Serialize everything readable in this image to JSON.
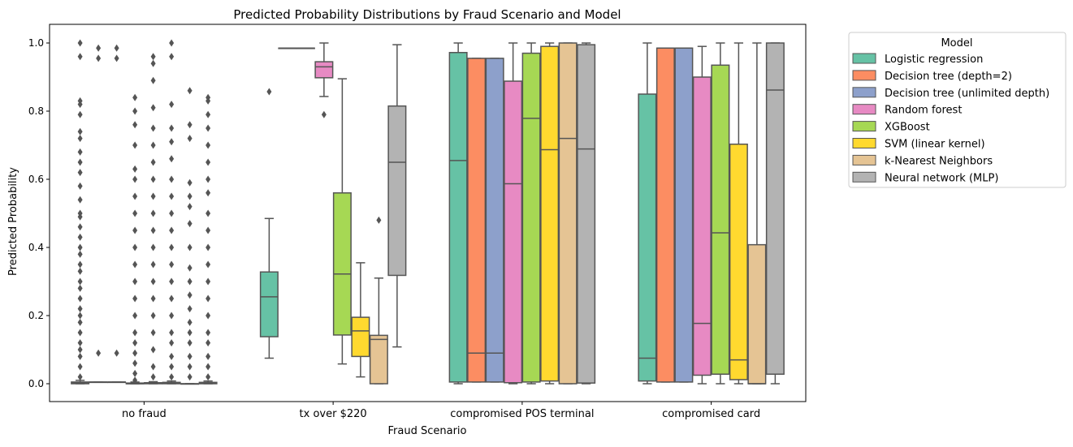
{
  "chart_data": {
    "type": "box",
    "title": "Predicted Probability Distributions by Fraud Scenario and Model",
    "xlabel": "Fraud Scenario",
    "ylabel": "Predicted Probability",
    "ylim": [
      -0.05,
      1.05
    ],
    "yticks": [
      0.0,
      0.2,
      0.4,
      0.6,
      0.8,
      1.0
    ],
    "ytick_labels": [
      "0.0",
      "0.2",
      "0.4",
      "0.6",
      "0.8",
      "1.0"
    ],
    "categories": [
      "no fraud",
      "tx over $220",
      "compromised POS terminal",
      "compromised card"
    ],
    "legend": {
      "title": "Model",
      "placement": "outside-right"
    },
    "grid": false,
    "series": [
      {
        "name": "Logistic regression",
        "color": "#66c2a5",
        "boxes": [
          {
            "q1": 0.0,
            "median": 0.002,
            "q3": 0.005,
            "whislo": 0.0,
            "whishi": 0.01,
            "fliers": [
              0.02,
              0.05,
              0.08,
              0.1,
              0.12,
              0.15,
              0.18,
              0.2,
              0.22,
              0.25,
              0.28,
              0.3,
              0.33,
              0.35,
              0.38,
              0.4,
              0.43,
              0.46,
              0.49,
              0.5,
              0.54,
              0.58,
              0.62,
              0.65,
              0.68,
              0.72,
              0.74,
              0.79,
              0.82,
              0.83,
              0.96,
              1.0
            ]
          },
          {
            "q1": 0.138,
            "median": 0.255,
            "q3": 0.328,
            "whislo": 0.075,
            "whishi": 0.485,
            "fliers": [
              0.857
            ]
          },
          {
            "q1": 0.005,
            "median": 0.655,
            "q3": 0.972,
            "whislo": 0.0,
            "whishi": 1.0,
            "fliers": []
          },
          {
            "q1": 0.008,
            "median": 0.075,
            "q3": 0.85,
            "whislo": 0.0,
            "whishi": 1.0,
            "fliers": []
          }
        ]
      },
      {
        "name": "Decision tree (depth=2)",
        "color": "#fc8d62",
        "boxes": [
          {
            "q1": 0.005,
            "median": 0.005,
            "q3": 0.005,
            "whislo": 0.005,
            "whishi": 0.005,
            "fliers": [
              0.09,
              0.955,
              0.985
            ]
          },
          {
            "q1": 0.985,
            "median": 0.985,
            "q3": 0.985,
            "whislo": 0.985,
            "whishi": 0.985,
            "fliers": []
          },
          {
            "q1": 0.005,
            "median": 0.09,
            "q3": 0.955,
            "whislo": 0.005,
            "whishi": 0.955,
            "fliers": []
          },
          {
            "q1": 0.005,
            "median": 0.985,
            "q3": 0.985,
            "whislo": 0.005,
            "whishi": 0.985,
            "fliers": []
          }
        ]
      },
      {
        "name": "Decision tree (unlimited depth)",
        "color": "#8da0cb",
        "boxes": [
          {
            "q1": 0.005,
            "median": 0.005,
            "q3": 0.005,
            "whislo": 0.005,
            "whishi": 0.005,
            "fliers": [
              0.09,
              0.955,
              0.985
            ]
          },
          {
            "q1": 0.985,
            "median": 0.985,
            "q3": 0.985,
            "whislo": 0.985,
            "whishi": 0.985,
            "fliers": []
          },
          {
            "q1": 0.005,
            "median": 0.09,
            "q3": 0.955,
            "whislo": 0.005,
            "whishi": 0.955,
            "fliers": []
          },
          {
            "q1": 0.005,
            "median": 0.985,
            "q3": 0.985,
            "whislo": 0.005,
            "whishi": 0.985,
            "fliers": []
          }
        ]
      },
      {
        "name": "Random forest",
        "color": "#e78ac3",
        "boxes": [
          {
            "q1": 0.0,
            "median": 0.0,
            "q3": 0.002,
            "whislo": 0.0,
            "whishi": 0.005,
            "fliers": [
              0.01,
              0.03,
              0.06,
              0.09,
              0.12,
              0.15,
              0.2,
              0.25,
              0.3,
              0.35,
              0.4,
              0.45,
              0.5,
              0.55,
              0.6,
              0.63,
              0.7,
              0.76,
              0.8,
              0.84
            ]
          },
          {
            "q1": 0.898,
            "median": 0.93,
            "q3": 0.945,
            "whislo": 0.843,
            "whishi": 1.0,
            "fliers": [
              0.79
            ]
          },
          {
            "q1": 0.003,
            "median": 0.587,
            "q3": 0.888,
            "whislo": 0.0,
            "whishi": 1.0,
            "fliers": []
          },
          {
            "q1": 0.025,
            "median": 0.177,
            "q3": 0.9,
            "whislo": 0.0,
            "whishi": 0.99,
            "fliers": []
          }
        ]
      },
      {
        "name": "XGBoost",
        "color": "#a6d854",
        "boxes": [
          {
            "q1": 0.0,
            "median": 0.001,
            "q3": 0.003,
            "whislo": 0.0,
            "whishi": 0.006,
            "fliers": [
              0.02,
              0.05,
              0.1,
              0.15,
              0.2,
              0.25,
              0.3,
              0.35,
              0.4,
              0.45,
              0.5,
              0.55,
              0.6,
              0.65,
              0.7,
              0.75,
              0.81,
              0.89,
              0.94,
              0.96
            ]
          },
          {
            "q1": 0.143,
            "median": 0.322,
            "q3": 0.56,
            "whislo": 0.058,
            "whishi": 0.895,
            "fliers": []
          },
          {
            "q1": 0.005,
            "median": 0.779,
            "q3": 0.97,
            "whislo": 0.0,
            "whishi": 1.0,
            "fliers": []
          },
          {
            "q1": 0.028,
            "median": 0.443,
            "q3": 0.935,
            "whislo": 0.0,
            "whishi": 1.0,
            "fliers": []
          }
        ]
      },
      {
        "name": "SVM (linear kernel)",
        "color": "#ffd92f",
        "boxes": [
          {
            "q1": 0.0,
            "median": 0.002,
            "q3": 0.004,
            "whislo": 0.0,
            "whishi": 0.008,
            "fliers": [
              0.02,
              0.05,
              0.08,
              0.12,
              0.15,
              0.2,
              0.25,
              0.3,
              0.35,
              0.4,
              0.45,
              0.5,
              0.55,
              0.6,
              0.66,
              0.71,
              0.75,
              0.82,
              0.96,
              1.0
            ]
          },
          {
            "q1": 0.08,
            "median": 0.155,
            "q3": 0.195,
            "whislo": 0.02,
            "whishi": 0.355,
            "fliers": []
          },
          {
            "q1": 0.008,
            "median": 0.687,
            "q3": 0.99,
            "whislo": 0.0,
            "whishi": 1.0,
            "fliers": []
          },
          {
            "q1": 0.012,
            "median": 0.07,
            "q3": 0.703,
            "whislo": 0.0,
            "whishi": 1.0,
            "fliers": []
          }
        ]
      },
      {
        "name": "k-Nearest Neighbors",
        "color": "#e5c494",
        "boxes": [
          {
            "q1": 0.0,
            "median": 0.0,
            "q3": 0.0,
            "whislo": 0.0,
            "whishi": 0.0,
            "fliers": [
              0.02,
              0.05,
              0.08,
              0.12,
              0.15,
              0.18,
              0.22,
              0.26,
              0.3,
              0.34,
              0.4,
              0.47,
              0.52,
              0.55,
              0.59,
              0.72,
              0.76,
              0.86
            ]
          },
          {
            "q1": 0.0,
            "median": 0.13,
            "q3": 0.142,
            "whislo": 0.0,
            "whishi": 0.31,
            "fliers": [
              0.48
            ]
          },
          {
            "q1": 0.0,
            "median": 0.72,
            "q3": 1.0,
            "whislo": 0.0,
            "whishi": 1.0,
            "fliers": []
          },
          {
            "q1": 0.0,
            "median": 0.0,
            "q3": 0.408,
            "whislo": 0.0,
            "whishi": 1.0,
            "fliers": []
          }
        ]
      },
      {
        "name": "Neural network (MLP)",
        "color": "#b3b3b3",
        "boxes": [
          {
            "q1": 0.0,
            "median": 0.002,
            "q3": 0.004,
            "whislo": 0.0,
            "whishi": 0.008,
            "fliers": [
              0.02,
              0.05,
              0.08,
              0.12,
              0.15,
              0.2,
              0.25,
              0.3,
              0.35,
              0.4,
              0.45,
              0.5,
              0.56,
              0.6,
              0.65,
              0.7,
              0.75,
              0.79,
              0.83,
              0.84
            ]
          },
          {
            "q1": 0.318,
            "median": 0.65,
            "q3": 0.815,
            "whislo": 0.108,
            "whishi": 0.995,
            "fliers": []
          },
          {
            "q1": 0.002,
            "median": 0.689,
            "q3": 0.995,
            "whislo": 0.0,
            "whishi": 1.0,
            "fliers": []
          },
          {
            "q1": 0.028,
            "median": 0.862,
            "q3": 1.0,
            "whislo": 0.0,
            "whishi": 1.0,
            "fliers": []
          }
        ]
      }
    ]
  }
}
